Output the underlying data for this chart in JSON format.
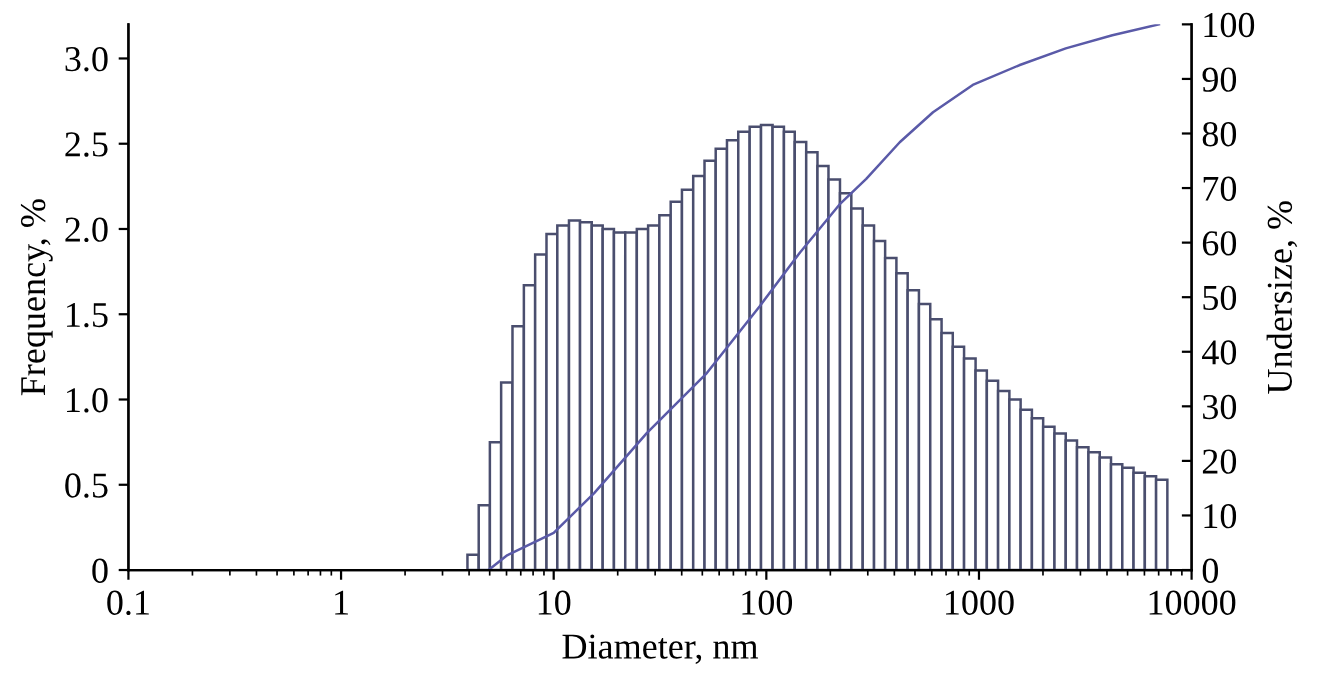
{
  "chart_data": {
    "type": "histogram",
    "xlabel": "Diameter, nm",
    "ylabel": "Frequency, %",
    "y2label": "Undersize, %",
    "log": "x",
    "color": "#4a4e6e",
    "bins": [
      3.93,
      4.44,
      5.01,
      5.66,
      6.4,
      7.24,
      8.18,
      9.25,
      10.4,
      11.8,
      13.3,
      15.1,
      17.0,
      19.2,
      21.7,
      24.6,
      27.8,
      31.4,
      35.5,
      40.1,
      45.3,
      51.2,
      57.8,
      65.3,
      73.8,
      83.5,
      94.4,
      107,
      121,
      136,
      154,
      174,
      196,
      222,
      251,
      284,
      321,
      362,
      409,
      462,
      522,
      590,
      667,
      753,
      851,
      964,
      1089,
      1230,
      1390,
      1570,
      1774,
      2004,
      2265,
      2559,
      2891,
      3273,
      3698,
      4178,
      4721,
      5333,
      6026,
      6808,
      7691
    ],
    "values": [
      0.09,
      0.38,
      0.75,
      1.1,
      1.43,
      1.67,
      1.85,
      1.97,
      2.02,
      2.05,
      2.04,
      2.02,
      2.0,
      1.98,
      1.98,
      2.0,
      2.02,
      2.08,
      2.16,
      2.23,
      2.31,
      2.4,
      2.47,
      2.52,
      2.57,
      2.6,
      2.61,
      2.6,
      2.57,
      2.51,
      2.45,
      2.37,
      2.29,
      2.21,
      2.12,
      2.02,
      1.93,
      1.83,
      1.74,
      1.64,
      1.56,
      1.47,
      1.39,
      1.31,
      1.24,
      1.17,
      1.11,
      1.05,
      1.0,
      0.94,
      0.89,
      0.84,
      0.8,
      0.76,
      0.72,
      0.69,
      0.66,
      0.62,
      0.6,
      0.57,
      0.55,
      0.53
    ],
    "series": [
      {
        "type": "line",
        "axis": "y2",
        "color": "#5a5aa8",
        "x": [
          4.94,
          6.04,
          10.0,
          15.5,
          27.4,
          52.5,
          93.3,
          144,
          221,
          295,
          424,
          608,
          935,
          1545,
          2560,
          4240,
          7020
        ],
        "values": [
          0,
          2.7,
          6.8,
          14.1,
          25.1,
          36.1,
          48.4,
          58.2,
          67.0,
          71.7,
          78.4,
          83.9,
          88.9,
          92.5,
          95.6,
          98.0,
          100
        ]
      }
    ],
    "xlim": [
      0.1,
      10000
    ],
    "xticks": [
      {
        "value": 0.1,
        "label": "0.1"
      },
      1,
      10,
      100,
      1000,
      10000
    ],
    "ylim": [
      0,
      3.2
    ],
    "yticks": [
      0,
      {
        "value": 0.5,
        "label": "0.5"
      },
      {
        "value": 1.0,
        "label": "1.0"
      },
      {
        "value": 1.5,
        "label": "1.5"
      },
      {
        "value": 2.0,
        "label": "2.0"
      },
      {
        "value": 2.5,
        "label": "2.5"
      },
      {
        "value": 3.0,
        "label": "3.0"
      }
    ],
    "y2lim": [
      0,
      100
    ],
    "y2ticks": [
      0,
      10,
      20,
      30,
      40,
      50,
      60,
      70,
      80,
      90,
      100
    ],
    "grid": false,
    "legend": false
  }
}
